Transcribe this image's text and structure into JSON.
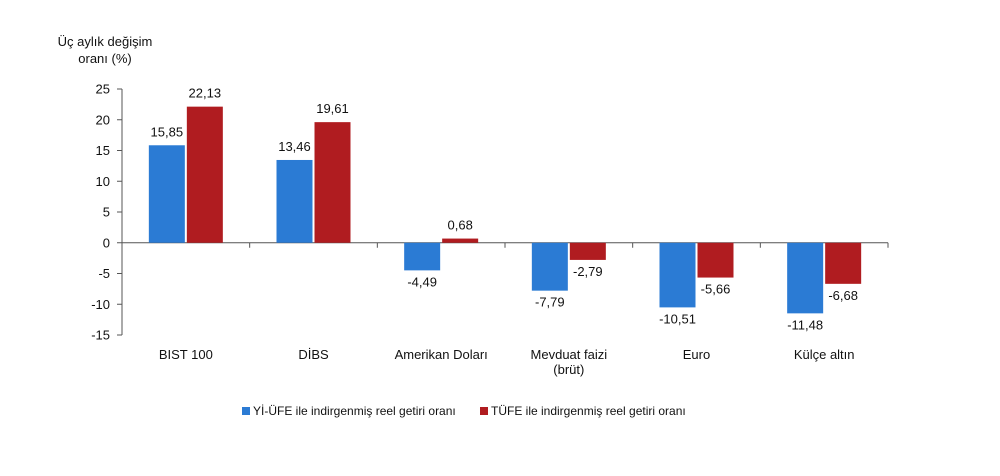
{
  "chart_data": {
    "type": "bar",
    "ylabel_lines": [
      "Üç aylık değişim",
      "oranı (%)"
    ],
    "categories": [
      [
        "BIST 100"
      ],
      [
        "DİBS"
      ],
      [
        "Amerikan Doları"
      ],
      [
        "Mevduat faizi",
        "(brüt)"
      ],
      [
        "Euro"
      ],
      [
        "Külçe altın"
      ]
    ],
    "series": [
      {
        "name": "Yİ-ÜFE ile indirgenmiş reel getiri oranı",
        "color": "#2b7bd4",
        "values": [
          15.85,
          13.46,
          -4.49,
          -7.79,
          -10.51,
          -11.48
        ]
      },
      {
        "name": "TÜFE ile indirgenmiş reel getiri oranı",
        "color": "#b01c20",
        "values": [
          22.13,
          19.61,
          0.68,
          -2.79,
          -5.66,
          -6.68
        ]
      }
    ],
    "value_labels": [
      [
        "15,85",
        "13,46",
        "-4,49",
        "-7,79",
        "-10,51",
        "-11,48"
      ],
      [
        "22,13",
        "19,61",
        "0,68",
        "-2,79",
        "-5,66",
        "-6,68"
      ]
    ],
    "ylim": [
      -15,
      25
    ],
    "yticks": [
      25,
      20,
      15,
      10,
      5,
      0,
      -5,
      -10,
      -15
    ],
    "grid": false,
    "legend_position": "bottom"
  }
}
